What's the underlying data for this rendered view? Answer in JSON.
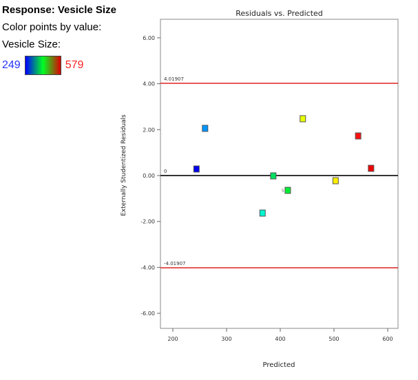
{
  "legend": {
    "title": "Response: Vesicle Size",
    "color_by": "Color points by value:",
    "variable": "Vesicle Size:",
    "min": "249",
    "max": "579",
    "min_color": "#0000ff",
    "max_color": "#ff0000"
  },
  "chart_data": {
    "type": "scatter",
    "title": "Residuals vs. Predicted",
    "xlabel": "Predicted",
    "ylabel": "Externally Studentized Residuals",
    "xlim": [
      177,
      620
    ],
    "ylim": [
      -6.7,
      6.8
    ],
    "xticks": [
      "200",
      "300",
      "400",
      "500",
      "600"
    ],
    "xtick_values": [
      200,
      300,
      400,
      500,
      600
    ],
    "yticks": [
      "6.00",
      "4.00",
      "2.00",
      "0.00",
      "-2.00",
      "-4.00",
      "-6.00"
    ],
    "ytick_values": [
      6,
      4,
      2,
      0,
      -2,
      -4,
      -6
    ],
    "reference_lines": [
      {
        "value": 4.01907,
        "label": "4.01907",
        "color": "#e02020"
      },
      {
        "value": 0,
        "label": "0",
        "color": "#333333"
      },
      {
        "value": -4.01907,
        "label": "-4.01907",
        "color": "#e02020"
      }
    ],
    "points": [
      {
        "x": 244,
        "y": 0.27,
        "color": "#0000ee",
        "label": ""
      },
      {
        "x": 260,
        "y": 2.04,
        "color": "#0095ff",
        "label": ""
      },
      {
        "x": 367,
        "y": -1.65,
        "color": "#00f5d0",
        "label": ""
      },
      {
        "x": 387,
        "y": -0.03,
        "color": "#00e060",
        "label": ""
      },
      {
        "x": 414,
        "y": -0.66,
        "color": "#00ee33",
        "label": "5"
      },
      {
        "x": 442,
        "y": 2.46,
        "color": "#e8ff00",
        "label": ""
      },
      {
        "x": 503,
        "y": -0.24,
        "color": "#ffee00",
        "label": ""
      },
      {
        "x": 545,
        "y": 1.71,
        "color": "#ff1010",
        "label": ""
      },
      {
        "x": 569,
        "y": 0.3,
        "color": "#ee0000",
        "label": ""
      }
    ]
  }
}
